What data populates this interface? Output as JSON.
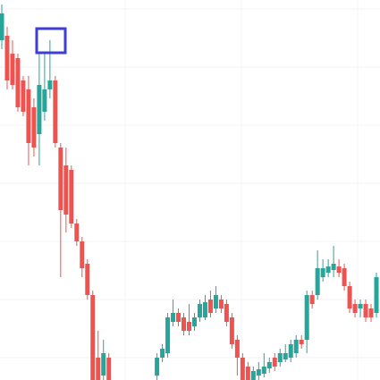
{
  "chart_data": {
    "type": "candlestick",
    "up_color": "#26a69a",
    "down_color": "#ef5350",
    "ylim": [
      0,
      425
    ],
    "yticks": [
      25,
      90,
      155,
      220,
      285,
      350,
      415
    ],
    "grid": true,
    "open": [
      380,
      385,
      365,
      360,
      335,
      325,
      305,
      275,
      300,
      325,
      335,
      260,
      240,
      235,
      175,
      155,
      130,
      95,
      25,
      5,
      25,
      null,
      null,
      null,
      null,
      null,
      null,
      null,
      null,
      5,
      25,
      30,
      65,
      75,
      70,
      65,
      60,
      70,
      70,
      90,
      80,
      90,
      85,
      70,
      45,
      25,
      15,
      0,
      5,
      7,
      13,
      25,
      20,
      23,
      25,
      30,
      45,
      45,
      95,
      95,
      115,
      120,
      123,
      127,
      125,
      105,
      85,
      80,
      85,
      80,
      75
    ],
    "high": [
      420,
      395,
      380,
      365,
      340,
      340,
      315,
      365,
      365,
      380,
      340,
      265,
      260,
      240,
      180,
      160,
      135,
      100,
      55,
      45,
      30,
      null,
      null,
      null,
      null,
      null,
      null,
      null,
      null,
      30,
      40,
      75,
      90,
      80,
      75,
      85,
      75,
      90,
      95,
      100,
      105,
      95,
      90,
      75,
      50,
      30,
      20,
      15,
      20,
      30,
      25,
      30,
      35,
      40,
      45,
      50,
      50,
      100,
      100,
      145,
      135,
      135,
      150,
      135,
      130,
      110,
      90,
      90,
      90,
      85,
      120
    ],
    "low": [
      370,
      325,
      325,
      300,
      295,
      240,
      250,
      240,
      290,
      315,
      260,
      115,
      165,
      170,
      150,
      115,
      90,
      0,
      0,
      0,
      0,
      null,
      null,
      null,
      null,
      null,
      null,
      null,
      null,
      0,
      20,
      25,
      60,
      60,
      50,
      50,
      55,
      65,
      67,
      70,
      75,
      75,
      60,
      35,
      5,
      0,
      0,
      0,
      0,
      3,
      8,
      10,
      15,
      20,
      20,
      25,
      35,
      30,
      80,
      90,
      110,
      115,
      115,
      115,
      100,
      75,
      70,
      70,
      65,
      65,
      70
    ],
    "close": [
      410,
      335,
      330,
      305,
      300,
      265,
      260,
      330,
      325,
      335,
      265,
      190,
      185,
      175,
      155,
      125,
      95,
      0,
      0,
      30,
      0,
      null,
      null,
      null,
      null,
      null,
      null,
      null,
      null,
      25,
      35,
      70,
      75,
      65,
      55,
      55,
      70,
      85,
      87,
      75,
      95,
      80,
      65,
      40,
      25,
      0,
      0,
      10,
      12,
      15,
      20,
      15,
      30,
      30,
      40,
      45,
      40,
      95,
      85,
      125,
      125,
      127,
      130,
      120,
      105,
      80,
      75,
      85,
      70,
      70,
      115
    ]
  }
}
